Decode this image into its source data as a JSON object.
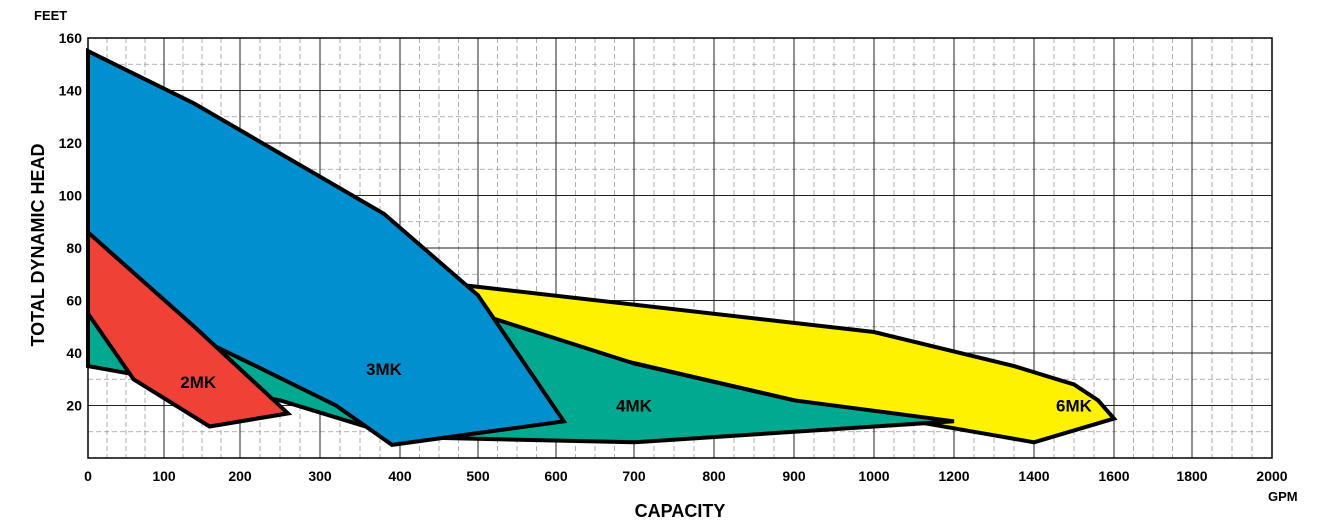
{
  "chart_data": {
    "type": "area",
    "xlabel": "CAPACITY",
    "ylabel": "TOTAL DYNAMIC HEAD",
    "x_unit": "GPM",
    "y_unit": "FEET",
    "xlim": [
      0,
      2000
    ],
    "ylim": [
      0,
      160
    ],
    "x_ticks": [
      {
        "label": "0",
        "value": 0
      },
      {
        "label": "100",
        "value": 100
      },
      {
        "label": "200",
        "value": 200
      },
      {
        "label": "300",
        "value": 300
      },
      {
        "label": "400",
        "value": 400
      },
      {
        "label": "500",
        "value": 500
      },
      {
        "label": "600",
        "value": 600
      },
      {
        "label": "700",
        "value": 700
      },
      {
        "label": "800",
        "value": 800
      },
      {
        "label": "900",
        "value": 900
      },
      {
        "label": "1000",
        "value": 1000
      },
      {
        "label": "1200",
        "value": 1200
      },
      {
        "label": "1400",
        "value": 1400
      },
      {
        "label": "1600",
        "value": 1600
      },
      {
        "label": "1800",
        "value": 1800
      },
      {
        "label": "2000",
        "value": 2000
      }
    ],
    "y_ticks": [
      {
        "label": "20",
        "value": 20
      },
      {
        "label": "40",
        "value": 40
      },
      {
        "label": "60",
        "value": 60
      },
      {
        "label": "80",
        "value": 80
      },
      {
        "label": "100",
        "value": 100
      },
      {
        "label": "120",
        "value": 120
      },
      {
        "label": "140",
        "value": 140
      },
      {
        "label": "160",
        "value": 160
      }
    ],
    "grid": true,
    "series": [
      {
        "name": "6MK",
        "color": "#fff200",
        "label_at": [
          1500,
          20
        ],
        "points": [
          [
            360,
            70
          ],
          [
            1000,
            48
          ],
          [
            1350,
            35
          ],
          [
            1500,
            28
          ],
          [
            1560,
            22
          ],
          [
            1600,
            15
          ],
          [
            1400,
            6
          ],
          [
            1250,
            10
          ],
          [
            900,
            22
          ],
          [
            500,
            50
          ],
          [
            400,
            60
          ]
        ]
      },
      {
        "name": "4MK",
        "color": "#00a98f",
        "label_at": [
          700,
          20
        ],
        "points": [
          [
            0,
            35
          ],
          [
            0,
            85
          ],
          [
            70,
            68
          ],
          [
            240,
            46
          ],
          [
            500,
            55
          ],
          [
            700,
            36
          ],
          [
            900,
            22
          ],
          [
            1200,
            14
          ],
          [
            700,
            6
          ],
          [
            400,
            8
          ],
          [
            250,
            22
          ]
        ]
      },
      {
        "name": "3MK",
        "color": "#0090d0",
        "label_at": [
          380,
          34
        ],
        "points": [
          [
            0,
            155
          ],
          [
            140,
            135
          ],
          [
            380,
            93
          ],
          [
            500,
            62
          ],
          [
            610,
            14
          ],
          [
            390,
            5
          ],
          [
            320,
            20
          ],
          [
            220,
            35
          ],
          [
            100,
            52
          ],
          [
            0,
            68
          ]
        ]
      },
      {
        "name": "2MK",
        "color": "#ef4136",
        "label_at": [
          145,
          29
        ],
        "points": [
          [
            0,
            86
          ],
          [
            140,
            50
          ],
          [
            260,
            17
          ],
          [
            160,
            12
          ],
          [
            60,
            30
          ],
          [
            0,
            55
          ]
        ]
      }
    ]
  }
}
